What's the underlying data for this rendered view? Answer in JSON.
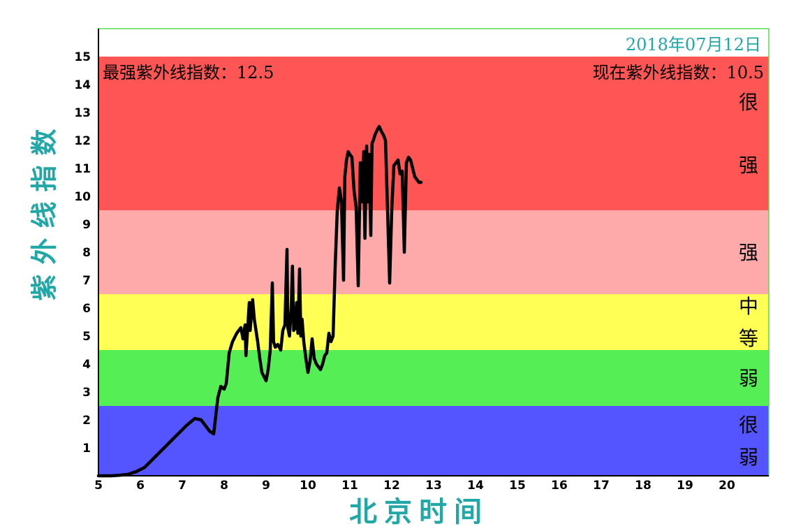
{
  "chart_data": {
    "type": "line",
    "date": "2018年07月12日",
    "max_label": "最强紫外线指数：12.5",
    "current_label": "现在紫外线指数：10.5",
    "xlabel": "北京时间",
    "ylabel": "紫外线指数",
    "xlim": [
      5,
      21
    ],
    "ylim": [
      0,
      16
    ],
    "xticks": [
      5,
      6,
      7,
      8,
      9,
      10,
      11,
      12,
      13,
      14,
      15,
      16,
      17,
      18,
      19,
      20
    ],
    "yticks": [
      1,
      2,
      3,
      4,
      5,
      6,
      7,
      8,
      9,
      10,
      11,
      12,
      13,
      14,
      15
    ],
    "bands": [
      {
        "from": 0,
        "to": 2.5,
        "color": "#5555ff",
        "label": "很弱"
      },
      {
        "from": 2.5,
        "to": 4.5,
        "color": "#55ee55",
        "label": "弱"
      },
      {
        "from": 4.5,
        "to": 6.5,
        "color": "#ffff55",
        "label": "中等"
      },
      {
        "from": 6.5,
        "to": 9.5,
        "color": "#ffaaaa",
        "label": "强"
      },
      {
        "from": 9.5,
        "to": 15,
        "color": "#ff5555",
        "label": "很强"
      }
    ],
    "series": [
      {
        "color": "#000000",
        "x": [
          5.0,
          5.3,
          5.5,
          5.7,
          5.9,
          6.1,
          6.3,
          6.5,
          6.7,
          6.9,
          7.1,
          7.3,
          7.45,
          7.55,
          7.65,
          7.75,
          7.85,
          7.92,
          8.0,
          8.05,
          8.12,
          8.2,
          8.3,
          8.4,
          8.45,
          8.5,
          8.52,
          8.55,
          8.6,
          8.62,
          8.68,
          8.72,
          8.75,
          8.8,
          8.85,
          8.9,
          9.0,
          9.05,
          9.1,
          9.15,
          9.18,
          9.22,
          9.28,
          9.35,
          9.4,
          9.45,
          9.5,
          9.52,
          9.56,
          9.6,
          9.63,
          9.66,
          9.7,
          9.73,
          9.76,
          9.8,
          9.83,
          9.86,
          9.9,
          9.95,
          10.0,
          10.05,
          10.1,
          10.15,
          10.2,
          10.25,
          10.3,
          10.35,
          10.4,
          10.45,
          10.5,
          10.55,
          10.6,
          10.65,
          10.7,
          10.75,
          10.8,
          10.85,
          10.88,
          10.92,
          10.96,
          11.0,
          11.05,
          11.1,
          11.15,
          11.2,
          11.25,
          11.3,
          11.33,
          11.36,
          11.4,
          11.43,
          11.46,
          11.5,
          11.53,
          11.56,
          11.6,
          11.63,
          11.66,
          11.7,
          11.73,
          11.76,
          11.8,
          11.85,
          11.9,
          11.95,
          12.0,
          12.05,
          12.1,
          12.15,
          12.2,
          12.25,
          12.3,
          12.35,
          12.4,
          12.45,
          12.5,
          12.55,
          12.6,
          12.65,
          12.7
        ],
        "y": [
          0.0,
          0.0,
          0.02,
          0.05,
          0.15,
          0.3,
          0.6,
          0.9,
          1.2,
          1.5,
          1.8,
          2.05,
          2.0,
          1.8,
          1.6,
          1.5,
          2.8,
          3.2,
          3.1,
          3.3,
          4.4,
          4.8,
          5.1,
          5.3,
          4.9,
          5.4,
          4.3,
          5.0,
          6.2,
          5.2,
          6.3,
          5.6,
          5.3,
          4.8,
          4.2,
          3.7,
          3.4,
          3.8,
          4.5,
          6.9,
          4.8,
          4.6,
          4.7,
          4.5,
          5.2,
          5.4,
          8.1,
          5.3,
          5.0,
          6.0,
          7.5,
          5.2,
          5.3,
          6.2,
          5.1,
          7.4,
          5.0,
          5.6,
          4.8,
          4.2,
          3.7,
          4.1,
          4.9,
          4.2,
          4.0,
          3.9,
          3.8,
          4.0,
          4.3,
          4.4,
          5.1,
          4.8,
          5.0,
          7.5,
          9.5,
          10.3,
          9.8,
          7.0,
          10.7,
          11.3,
          11.6,
          11.5,
          11.4,
          10.2,
          9.6,
          6.8,
          11.2,
          9.8,
          11.6,
          8.5,
          11.8,
          9.8,
          11.5,
          8.6,
          11.9,
          12.0,
          12.2,
          12.3,
          12.4,
          12.5,
          12.4,
          12.3,
          12.2,
          12.0,
          9.5,
          6.9,
          9.5,
          11.1,
          11.2,
          11.3,
          10.8,
          10.9,
          8.0,
          11.2,
          11.4,
          11.3,
          11.0,
          10.7,
          10.6,
          10.5,
          10.5
        ]
      }
    ]
  }
}
